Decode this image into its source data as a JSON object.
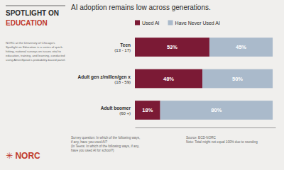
{
  "chart_data": {
    "type": "bar",
    "orientation": "horizontal",
    "stacked": true,
    "title": "AI adoption remains low across generations.",
    "categories": [
      [
        "Teen",
        "(13 - 17)"
      ],
      [
        "Adult gen z/millen/gen x",
        "(18 - 59)"
      ],
      [
        "Adult boomer",
        "(60 +)"
      ]
    ],
    "series": [
      {
        "name": "Used AI",
        "color": "#7B1A35",
        "values": [
          53,
          48,
          18
        ],
        "value_labels": [
          "53%",
          "48%",
          "18%"
        ]
      },
      {
        "name": "Have Never Used AI",
        "color": "#AABACB",
        "values": [
          45,
          50,
          80
        ],
        "value_labels": [
          "45%",
          "50%",
          "80%"
        ]
      }
    ],
    "xlim": [
      0,
      100
    ],
    "tick_labels": false,
    "data_labels": true,
    "legend": "top",
    "annotations": [
      {
        "text": "SPOTLIGHT ON"
      },
      {
        "text": "EDUCATION",
        "color": "#C0392B"
      },
      {
        "text": "NORC at the University of Chicago's\nSpotlight on Education is a series of quick-\nhitting, national surveys on issues vital to\neducation, training, and learning, conducted\nusing AmeriSpeak's probability-based panel."
      },
      {
        "text": "✳ NORC",
        "color": "#C0392B"
      },
      {
        "text": "Survey question: In which of the following ways,\nif any, have you used AI?\n(In Teens: In which of the following ways, if any,\nhave you used AI for school?)"
      },
      {
        "text": "Source: ECD-NORC\nNote: Total might not equal 100% due to rounding"
      }
    ]
  }
}
